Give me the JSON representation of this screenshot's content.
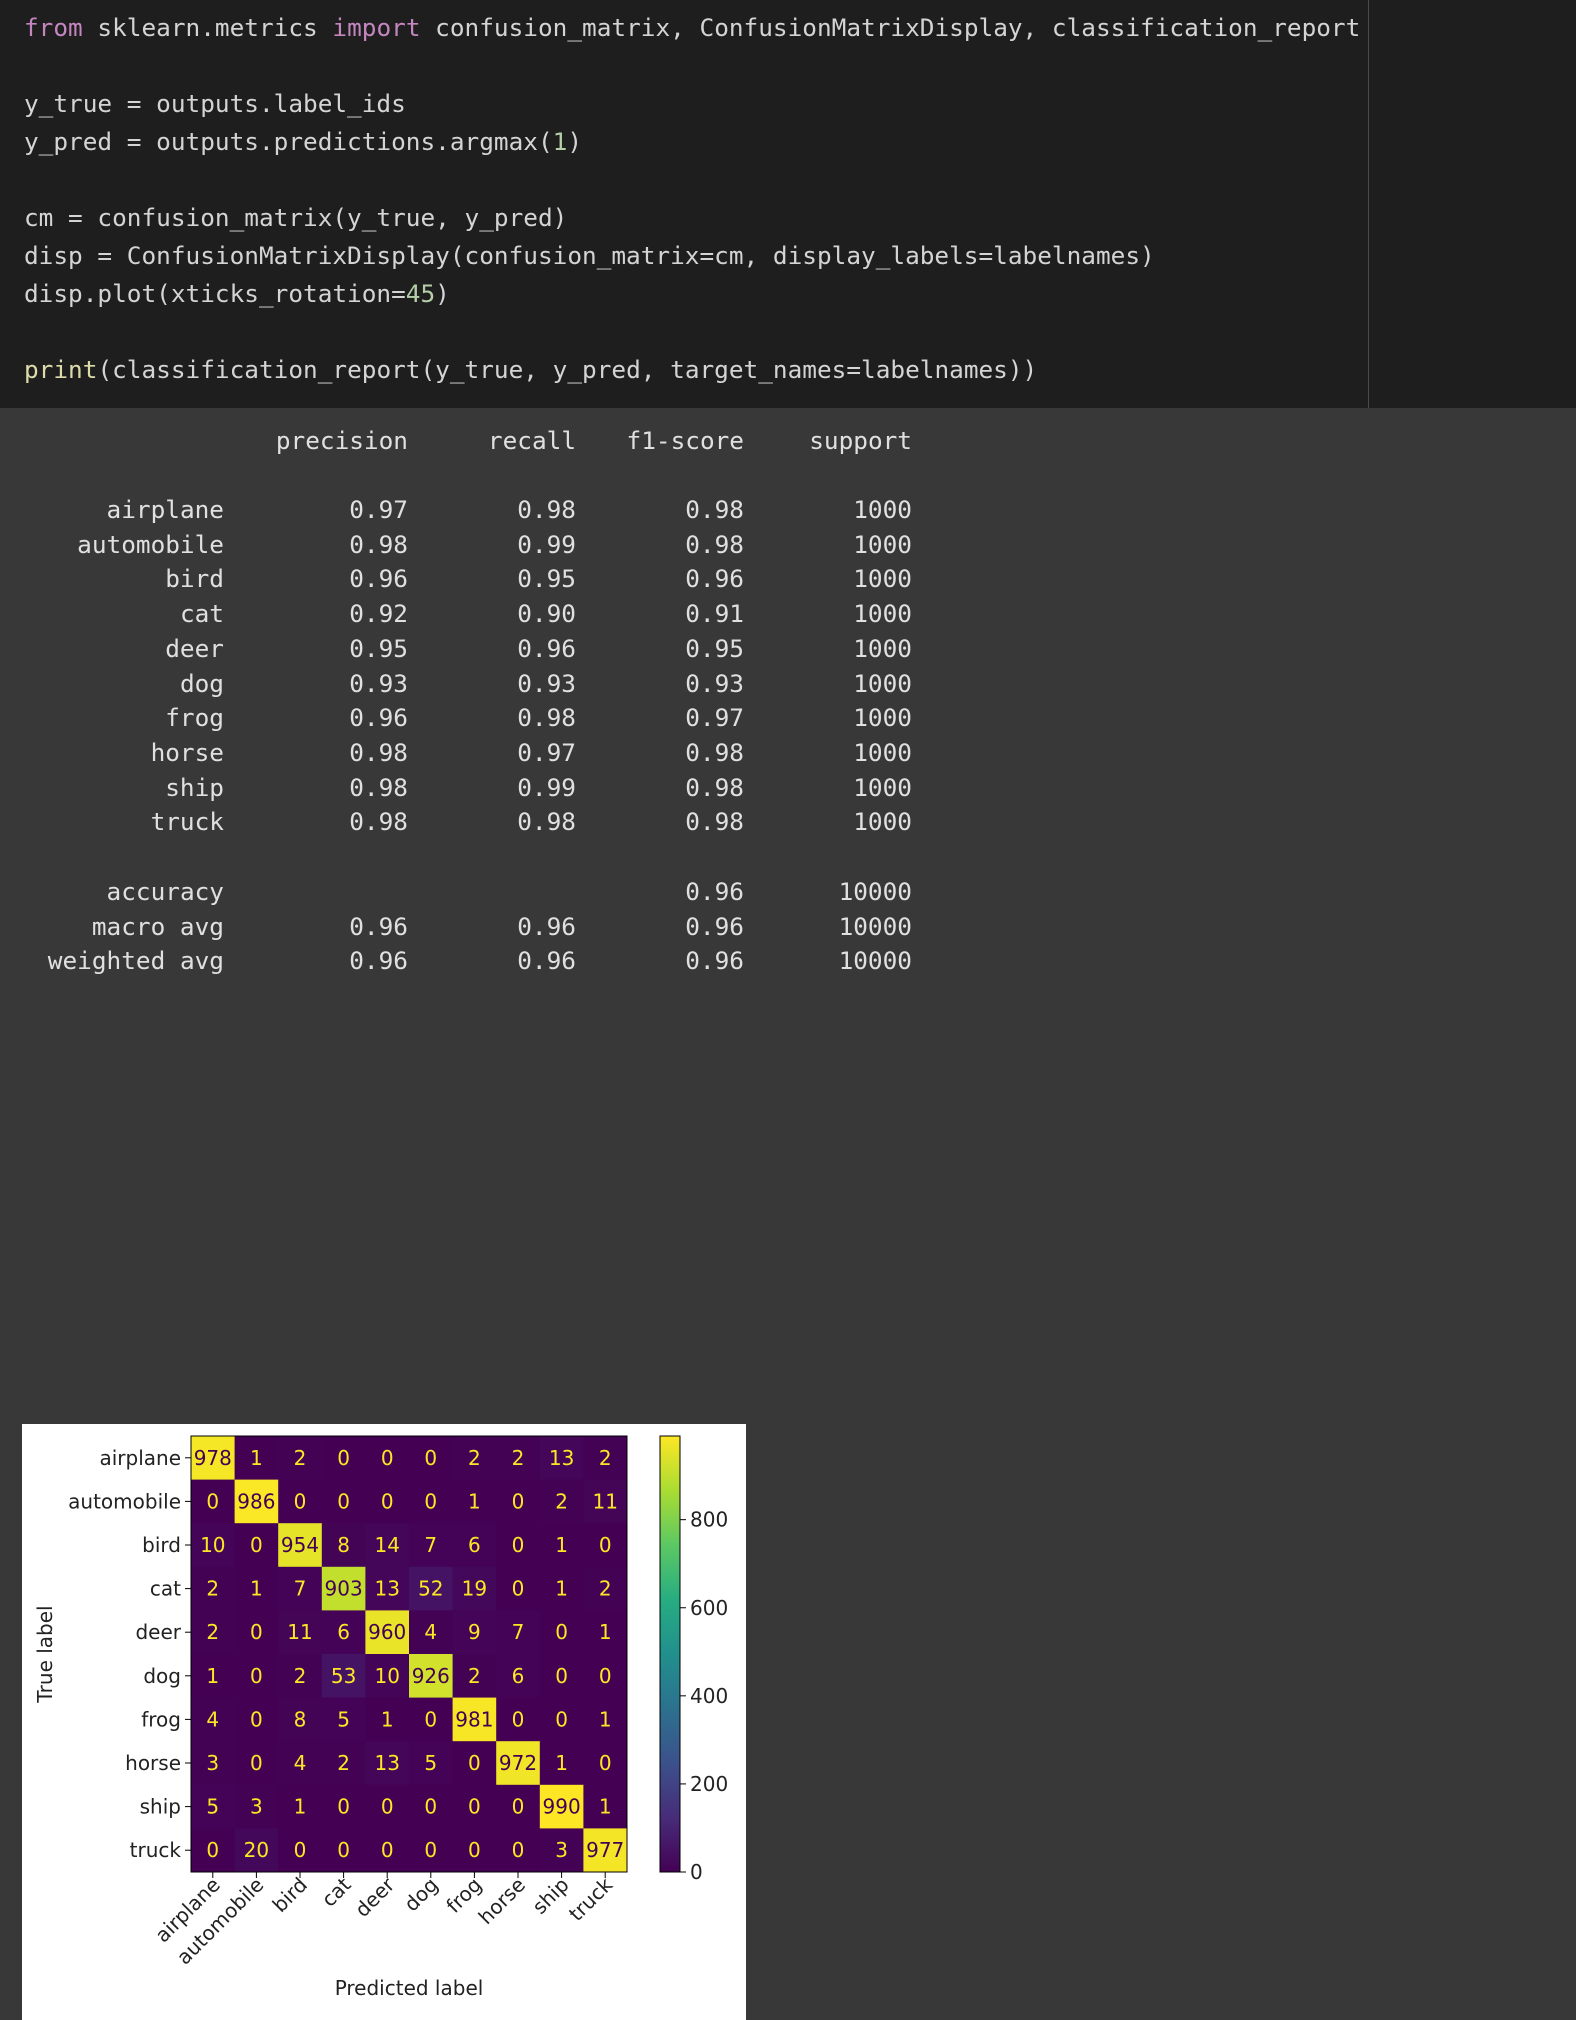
{
  "code": {
    "line1": {
      "kw1": "from",
      "mid1": " sklearn.metrics ",
      "kw2": "import",
      "rest": " confusion_matrix, ConfusionMatrixDisplay, classification_report"
    },
    "line2": "y_true = outputs.label_ids",
    "line3": {
      "pre": "y_pred = outputs.predictions.argmax(",
      "num": "1",
      "post": ")"
    },
    "line4": "cm = confusion_matrix(y_true, y_pred)",
    "line5": "disp = ConfusionMatrixDisplay(confusion_matrix=cm, display_labels=labelnames)",
    "line6": {
      "pre": "disp.plot(xticks_rotation=",
      "num": "45",
      "post": ")"
    },
    "line7": {
      "fn": "print",
      "rest": "(classification_report(y_true, y_pred, target_names=labelnames))"
    }
  },
  "report": {
    "headers": {
      "precision": "precision",
      "recall": "recall",
      "f1": "f1-score",
      "support": "support"
    },
    "rows": [
      {
        "label": "airplane",
        "precision": "0.97",
        "recall": "0.98",
        "f1": "0.98",
        "support": "1000"
      },
      {
        "label": "automobile",
        "precision": "0.98",
        "recall": "0.99",
        "f1": "0.98",
        "support": "1000"
      },
      {
        "label": "bird",
        "precision": "0.96",
        "recall": "0.95",
        "f1": "0.96",
        "support": "1000"
      },
      {
        "label": "cat",
        "precision": "0.92",
        "recall": "0.90",
        "f1": "0.91",
        "support": "1000"
      },
      {
        "label": "deer",
        "precision": "0.95",
        "recall": "0.96",
        "f1": "0.95",
        "support": "1000"
      },
      {
        "label": "dog",
        "precision": "0.93",
        "recall": "0.93",
        "f1": "0.93",
        "support": "1000"
      },
      {
        "label": "frog",
        "precision": "0.96",
        "recall": "0.98",
        "f1": "0.97",
        "support": "1000"
      },
      {
        "label": "horse",
        "precision": "0.98",
        "recall": "0.97",
        "f1": "0.98",
        "support": "1000"
      },
      {
        "label": "ship",
        "precision": "0.98",
        "recall": "0.99",
        "f1": "0.98",
        "support": "1000"
      },
      {
        "label": "truck",
        "precision": "0.98",
        "recall": "0.98",
        "f1": "0.98",
        "support": "1000"
      }
    ],
    "summary": [
      {
        "label": "accuracy",
        "precision": "",
        "recall": "",
        "f1": "0.96",
        "support": "10000"
      },
      {
        "label": "macro avg",
        "precision": "0.96",
        "recall": "0.96",
        "f1": "0.96",
        "support": "10000"
      },
      {
        "label": "weighted avg",
        "precision": "0.96",
        "recall": "0.96",
        "f1": "0.96",
        "support": "10000"
      }
    ]
  },
  "chart_data": {
    "type": "heatmap",
    "labels": [
      "airplane",
      "automobile",
      "bird",
      "cat",
      "deer",
      "dog",
      "frog",
      "horse",
      "ship",
      "truck"
    ],
    "matrix": [
      [
        978,
        1,
        2,
        0,
        0,
        0,
        2,
        2,
        13,
        2
      ],
      [
        0,
        986,
        0,
        0,
        0,
        0,
        1,
        0,
        2,
        11
      ],
      [
        10,
        0,
        954,
        8,
        14,
        7,
        6,
        0,
        1,
        0
      ],
      [
        2,
        1,
        7,
        903,
        13,
        52,
        19,
        0,
        1,
        2
      ],
      [
        2,
        0,
        11,
        6,
        960,
        4,
        9,
        7,
        0,
        1
      ],
      [
        1,
        0,
        2,
        53,
        10,
        926,
        2,
        6,
        0,
        0
      ],
      [
        4,
        0,
        8,
        5,
        1,
        0,
        981,
        0,
        0,
        1
      ],
      [
        3,
        0,
        4,
        2,
        13,
        5,
        0,
        972,
        1,
        0
      ],
      [
        5,
        3,
        1,
        0,
        0,
        0,
        0,
        0,
        990,
        1
      ],
      [
        0,
        20,
        0,
        0,
        0,
        0,
        0,
        0,
        3,
        977
      ]
    ],
    "xlabel": "Predicted label",
    "ylabel": "True label",
    "colormap": "viridis",
    "xticks_rotation": 45,
    "colorbar": {
      "min": 0,
      "max": 990,
      "ticks": [
        0,
        200,
        400,
        600,
        800
      ]
    }
  }
}
